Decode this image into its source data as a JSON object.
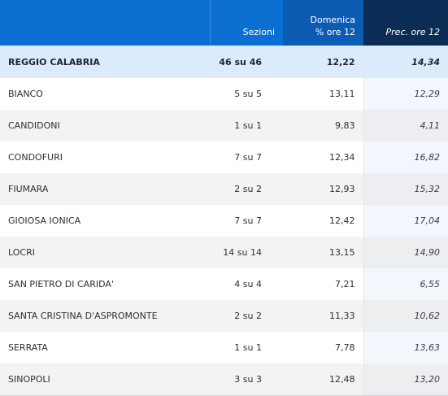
{
  "header": {
    "sezioni": "Sezioni",
    "domenica_line1": "Domenica",
    "domenica_line2": "% ore 12",
    "prec": "Prec. ore 12"
  },
  "total": {
    "name": "REGGIO CALABRIA",
    "sezioni": "46 su 46",
    "pct": "12,22",
    "prec": "14,34"
  },
  "rows": [
    {
      "name": "BIANCO",
      "sezioni": "5 su 5",
      "pct": "13,11",
      "prec": "12,29"
    },
    {
      "name": "CANDIDONI",
      "sezioni": "1 su 1",
      "pct": "9,83",
      "prec": "4,11"
    },
    {
      "name": "CONDOFURI",
      "sezioni": "7 su 7",
      "pct": "12,34",
      "prec": "16,82"
    },
    {
      "name": "FIUMARA",
      "sezioni": "2 su 2",
      "pct": "12,93",
      "prec": "15,32"
    },
    {
      "name": "GIOIOSA IONICA",
      "sezioni": "7 su 7",
      "pct": "12,42",
      "prec": "17,04"
    },
    {
      "name": "LOCRI",
      "sezioni": "14 su 14",
      "pct": "13,15",
      "prec": "14,90"
    },
    {
      "name": "SAN PIETRO DI CARIDA'",
      "sezioni": "4 su 4",
      "pct": "7,21",
      "prec": "6,55"
    },
    {
      "name": "SANTA CRISTINA D'ASPROMONTE",
      "sezioni": "2 su 2",
      "pct": "11,33",
      "prec": "10,62"
    },
    {
      "name": "SERRATA",
      "sezioni": "1 su 1",
      "pct": "7,78",
      "prec": "13,63"
    },
    {
      "name": "SINOPOLI",
      "sezioni": "3 su 3",
      "pct": "12,48",
      "prec": "13,20"
    }
  ]
}
